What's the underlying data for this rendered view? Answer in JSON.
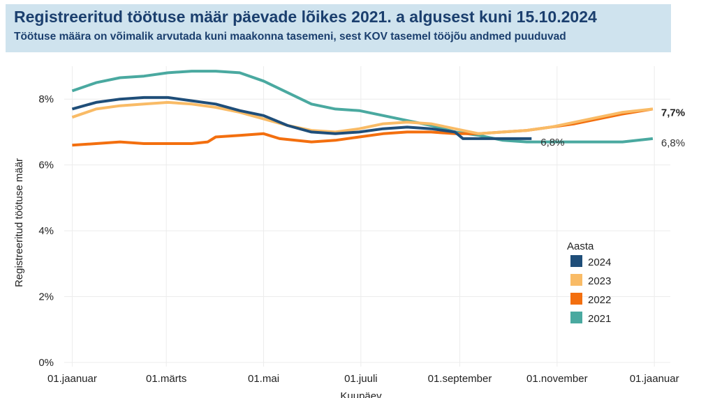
{
  "header": {
    "title": "Registreeritud töötuse määr päevade lõikes 2021. a algusest kuni 15.10.2024",
    "subtitle": "Töötuse määra on võimalik arvutada kuni maakonna tasemeni, sest KOV tasemel tööjõu andmed puuduvad"
  },
  "chart_data": {
    "type": "line",
    "title": "Registreeritud töötuse määr päevade lõikes 2021. a algusest kuni 15.10.2024",
    "subtitle": "Töötuse määra on võimalik arvutada kuni maakonna tasemeni, sest KOV tasemel tööjõu andmed puuduvad",
    "xlabel": "Kuupäev",
    "ylabel": "Registreeritud töötuse määr",
    "ylim": [
      0,
      9
    ],
    "y_ticks": [
      0,
      2,
      4,
      6,
      8
    ],
    "y_tick_labels": [
      "0%",
      "2%",
      "4%",
      "6%",
      "8%"
    ],
    "x_ticks": [
      0,
      59,
      120,
      181,
      243,
      304,
      365
    ],
    "x_tick_labels": [
      "01.jaanuar",
      "01.märts",
      "01.mai",
      "01.juuli",
      "01.september",
      "01.november",
      "01.jaanuar"
    ],
    "xlim": [
      -5,
      375
    ],
    "grid": true,
    "legend": {
      "title": "Aasta",
      "placement": "right"
    },
    "series": [
      {
        "name": "2024",
        "color": "#1f4e79",
        "x": [
          0,
          15,
          30,
          45,
          60,
          75,
          90,
          105,
          120,
          135,
          150,
          165,
          180,
          195,
          210,
          225,
          240,
          245,
          255,
          270,
          288
        ],
        "y": [
          7.7,
          7.9,
          8.0,
          8.05,
          8.05,
          7.95,
          7.85,
          7.65,
          7.5,
          7.2,
          7.0,
          6.95,
          7.0,
          7.1,
          7.15,
          7.1,
          7.0,
          6.8,
          6.8,
          6.8,
          6.8
        ],
        "end_label": "6,8%"
      },
      {
        "name": "2023",
        "color": "#f9bb66",
        "x": [
          0,
          15,
          30,
          45,
          60,
          75,
          90,
          105,
          120,
          135,
          150,
          165,
          180,
          195,
          210,
          225,
          240,
          255,
          270,
          285,
          300,
          315,
          330,
          345,
          364
        ],
        "y": [
          7.45,
          7.7,
          7.8,
          7.85,
          7.9,
          7.85,
          7.75,
          7.6,
          7.4,
          7.2,
          7.05,
          7.0,
          7.1,
          7.25,
          7.3,
          7.25,
          7.1,
          6.95,
          7.0,
          7.05,
          7.15,
          7.3,
          7.45,
          7.6,
          7.7
        ],
        "end_label": "7,7%"
      },
      {
        "name": "2022",
        "color": "#f36f0f",
        "x": [
          0,
          15,
          30,
          45,
          60,
          75,
          85,
          90,
          105,
          120,
          130,
          150,
          165,
          180,
          195,
          210,
          225,
          240,
          255,
          270,
          285,
          300,
          315,
          330,
          345,
          364
        ],
        "y": [
          6.6,
          6.65,
          6.7,
          6.65,
          6.65,
          6.65,
          6.7,
          6.85,
          6.9,
          6.95,
          6.8,
          6.7,
          6.75,
          6.85,
          6.95,
          7.0,
          7.0,
          6.95,
          6.95,
          7.0,
          7.05,
          7.15,
          7.25,
          7.4,
          7.55,
          7.7
        ]
      },
      {
        "name": "2021",
        "color": "#4aa9a0",
        "x": [
          0,
          15,
          30,
          45,
          60,
          75,
          90,
          105,
          120,
          135,
          150,
          165,
          180,
          195,
          210,
          225,
          240,
          255,
          270,
          285,
          300,
          315,
          330,
          345,
          364
        ],
        "y": [
          8.25,
          8.5,
          8.65,
          8.7,
          8.8,
          8.85,
          8.85,
          8.8,
          8.55,
          8.2,
          7.85,
          7.7,
          7.65,
          7.5,
          7.35,
          7.2,
          7.0,
          6.9,
          6.75,
          6.7,
          6.7,
          6.7,
          6.7,
          6.7,
          6.8
        ],
        "end_label": "6,8%"
      }
    ]
  }
}
